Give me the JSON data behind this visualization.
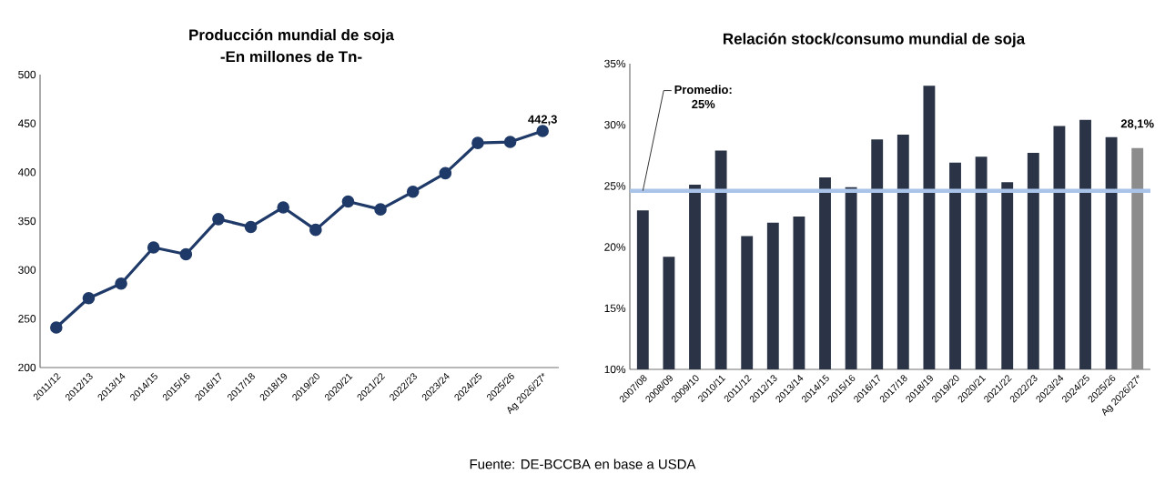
{
  "chart_data": [
    {
      "type": "line",
      "title": "Producción mundial de soja",
      "subtitle": "-En millones de Tn-",
      "categories": [
        "2011/12",
        "2012/13",
        "2013/14",
        "2014/15",
        "2015/16",
        "2016/17",
        "2017/18",
        "2018/19",
        "2019/20",
        "2020/21",
        "2021/22",
        "2022/23",
        "2023/24",
        "2024/25",
        "2025/26",
        "Ag 2026/27*"
      ],
      "series": [
        {
          "color": "#1f3a68",
          "values": [
            241,
            271,
            286,
            323,
            316,
            352,
            344,
            364,
            341,
            370,
            362,
            380,
            399,
            430,
            431,
            442.3
          ],
          "value_labels": [
            null,
            null,
            null,
            null,
            null,
            null,
            null,
            null,
            null,
            null,
            null,
            null,
            null,
            null,
            null,
            "442,3"
          ]
        }
      ],
      "ylim": [
        200,
        500
      ],
      "yticks": [
        200,
        250,
        300,
        350,
        400,
        450,
        500
      ],
      "marker": "circle",
      "line_style": "solid"
    },
    {
      "type": "bar",
      "title": "Relación stock/consumo mundial de soja",
      "categories": [
        "2007/08",
        "2008/09",
        "2009/10",
        "2010/11",
        "2011/12",
        "2012/13",
        "2013/14",
        "2014/15",
        "2015/16",
        "2016/17",
        "2017/18",
        "2018/19",
        "2019/20",
        "2020/21",
        "2021/22",
        "2022/23",
        "2023/24",
        "2024/25",
        "2025/26",
        "Ag 2026/27*"
      ],
      "series": [
        {
          "colors": [
            "#2b3446",
            "#2b3446",
            "#2b3446",
            "#2b3446",
            "#2b3446",
            "#2b3446",
            "#2b3446",
            "#2b3446",
            "#2b3446",
            "#2b3446",
            "#2b3446",
            "#2b3446",
            "#2b3446",
            "#2b3446",
            "#2b3446",
            "#2b3446",
            "#2b3446",
            "#2b3446",
            "#2b3446",
            "#8c8c8c"
          ],
          "values": [
            23.0,
            19.2,
            25.1,
            27.9,
            20.9,
            22.0,
            22.5,
            25.7,
            24.9,
            28.8,
            29.2,
            33.2,
            26.9,
            27.4,
            25.3,
            27.7,
            29.9,
            30.4,
            29.0,
            28.1
          ],
          "value_labels": [
            null,
            null,
            null,
            null,
            null,
            null,
            null,
            null,
            null,
            null,
            null,
            null,
            null,
            null,
            null,
            null,
            null,
            null,
            null,
            "28,1%"
          ]
        }
      ],
      "ylim": [
        10,
        35
      ],
      "yticks": [
        {
          "value": 10,
          "label": "10%"
        },
        {
          "value": 15,
          "label": "15%"
        },
        {
          "value": 20,
          "label": "20%"
        },
        {
          "value": 25,
          "label": "25%"
        },
        {
          "value": 30,
          "label": "30%"
        },
        {
          "value": 35,
          "label": "35%"
        }
      ],
      "ref_lines": [
        {
          "axis": "y",
          "value": 24.6,
          "label": "Promedio: 25%",
          "color": "#a9c4e8"
        }
      ],
      "annotations": [
        "Fuente: DE-BCCBA en base a USDA"
      ]
    }
  ]
}
